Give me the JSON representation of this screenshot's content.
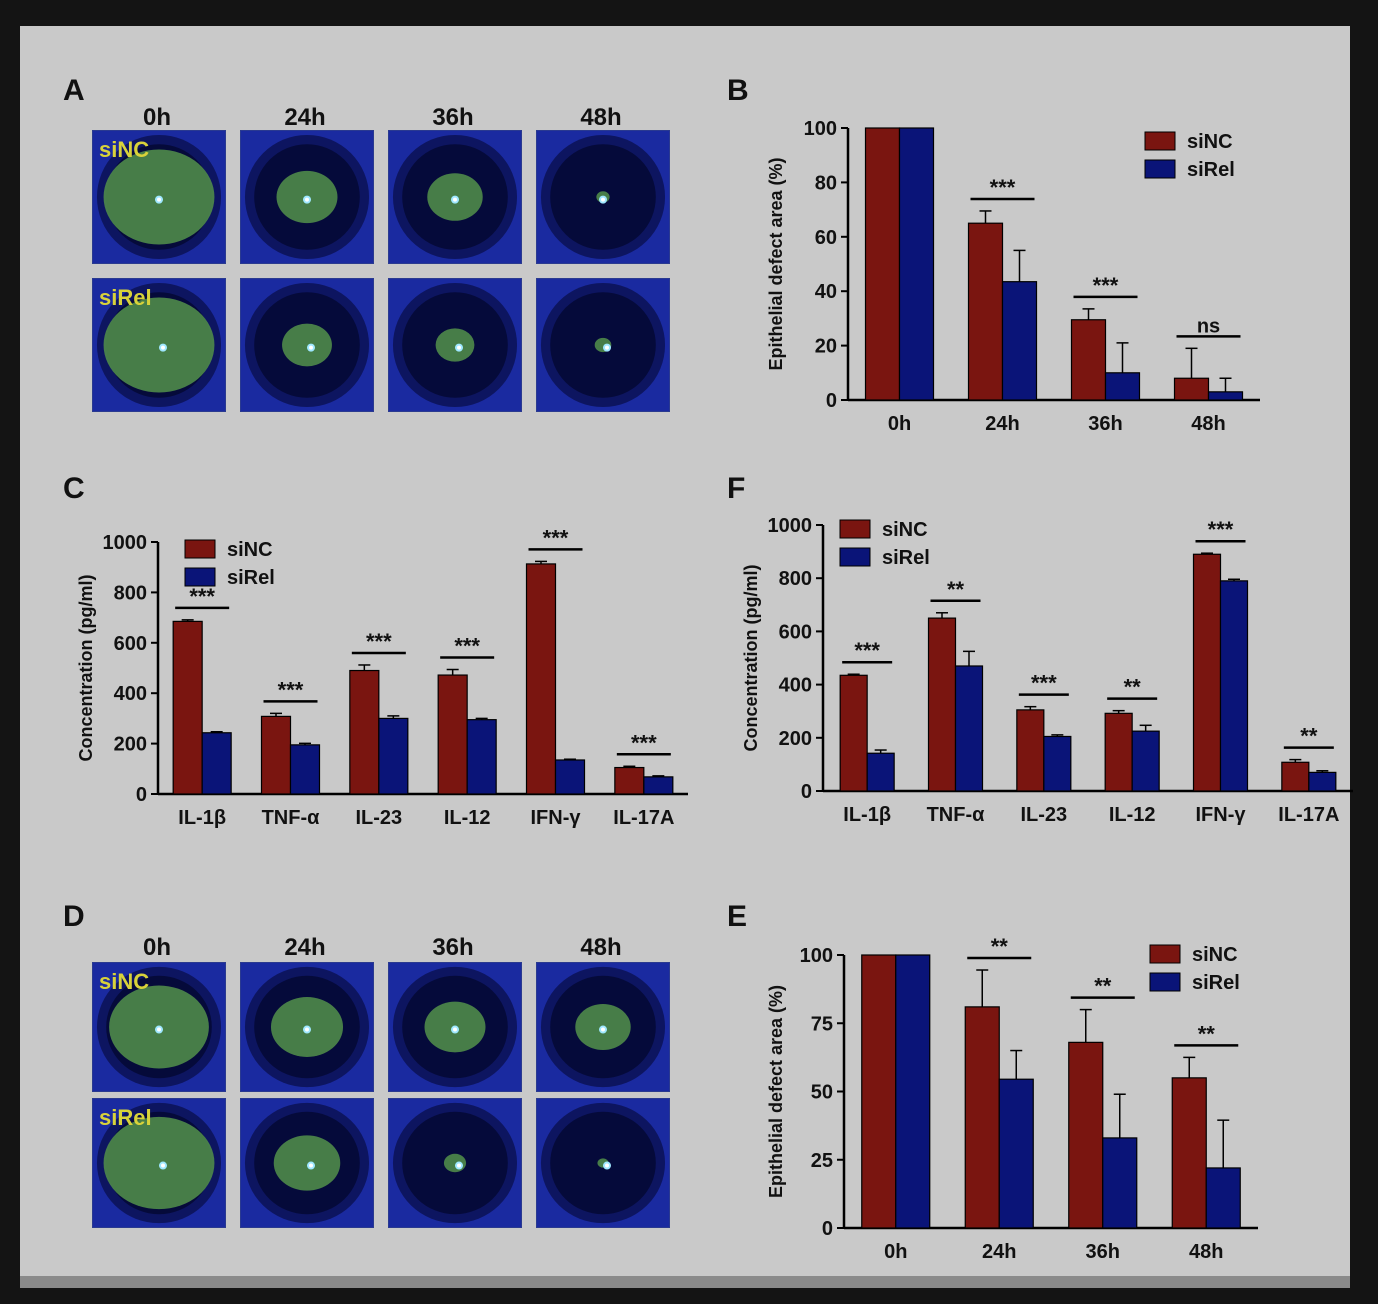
{
  "panels": {
    "A": {
      "letter": "A",
      "times": [
        "0h",
        "24h",
        "36h",
        "48h"
      ],
      "rows": [
        {
          "tag": "siNC",
          "stain": [
            1.0,
            0.55,
            0.5,
            0.12
          ]
        },
        {
          "tag": "siRel",
          "stain": [
            1.0,
            0.45,
            0.35,
            0.15
          ]
        }
      ]
    },
    "D": {
      "letter": "D",
      "times": [
        "0h",
        "24h",
        "36h",
        "48h"
      ],
      "rows": [
        {
          "tag": "siNC",
          "stain": [
            0.9,
            0.65,
            0.55,
            0.5
          ]
        },
        {
          "tag": "siRel",
          "stain": [
            1.0,
            0.6,
            0.2,
            0.1
          ]
        }
      ]
    },
    "B": {
      "letter": "B"
    },
    "C": {
      "letter": "C"
    },
    "F": {
      "letter": "F"
    },
    "E": {
      "letter": "E"
    }
  },
  "colors": {
    "siNC": "#7a1510",
    "siRel": "#0a1478"
  },
  "chart_data": [
    {
      "panel": "B",
      "type": "bar",
      "ylabel": "Epithelial defect area (%)",
      "categories": [
        "0h",
        "24h",
        "36h",
        "48h"
      ],
      "ylim": [
        0,
        100
      ],
      "yticks": [
        "0",
        "20",
        "40",
        "60",
        "80",
        "100"
      ],
      "legend_position": "top-right",
      "series": [
        {
          "name": "siNC",
          "values": [
            100,
            65,
            29.5,
            8
          ],
          "errors": [
            0,
            4.5,
            4,
            11
          ]
        },
        {
          "name": "siRel",
          "values": [
            100,
            43.5,
            10,
            3
          ],
          "errors": [
            0,
            11.5,
            11,
            5
          ]
        }
      ],
      "annotations": [
        "",
        "***",
        "***",
        "ns"
      ]
    },
    {
      "panel": "C",
      "type": "bar",
      "ylabel": "Concentration (pg/ml)",
      "categories": [
        "IL-1β",
        "TNF-α",
        "IL-23",
        "IL-12",
        "IFN-γ",
        "IL-17A"
      ],
      "ylim": [
        0,
        1000
      ],
      "yticks": [
        "0",
        "200",
        "400",
        "600",
        "800",
        "1000"
      ],
      "legend_position": "top-left",
      "series": [
        {
          "name": "siNC",
          "values": [
            685,
            308,
            490,
            472,
            913,
            105
          ],
          "errors": [
            6,
            12,
            22,
            22,
            10,
            5
          ]
        },
        {
          "name": "siRel",
          "values": [
            243,
            195,
            300,
            295,
            135,
            68
          ],
          "errors": [
            4,
            6,
            10,
            5,
            3,
            4
          ]
        }
      ],
      "annotations": [
        "***",
        "***",
        "***",
        "***",
        "***",
        "***"
      ]
    },
    {
      "panel": "F",
      "type": "bar",
      "ylabel": "Concentration (pg/ml)",
      "categories": [
        "IL-1β",
        "TNF-α",
        "IL-23",
        "IL-12",
        "IFN-γ",
        "IL-17A"
      ],
      "ylim": [
        0,
        1000
      ],
      "yticks": [
        "0",
        "200",
        "400",
        "600",
        "800",
        "1000"
      ],
      "legend_position": "top-left",
      "series": [
        {
          "name": "siNC",
          "values": [
            435,
            650,
            305,
            292,
            890,
            108
          ],
          "errors": [
            4,
            20,
            12,
            10,
            4,
            10
          ]
        },
        {
          "name": "siRel",
          "values": [
            142,
            470,
            205,
            225,
            790,
            70
          ],
          "errors": [
            12,
            55,
            6,
            22,
            6,
            6
          ]
        }
      ],
      "annotations": [
        "***",
        "**",
        "***",
        "**",
        "***",
        "**"
      ]
    },
    {
      "panel": "E",
      "type": "bar",
      "ylabel": "Epithelial defect area (%)",
      "categories": [
        "0h",
        "24h",
        "36h",
        "48h"
      ],
      "ylim": [
        0,
        100
      ],
      "yticks": [
        "0",
        "25",
        "50",
        "75",
        "100"
      ],
      "legend_position": "top-right",
      "series": [
        {
          "name": "siNC",
          "values": [
            100,
            81,
            68,
            55
          ],
          "errors": [
            0,
            13.5,
            12,
            7.5
          ]
        },
        {
          "name": "siRel",
          "values": [
            100,
            54.5,
            33,
            22
          ],
          "errors": [
            0,
            10.5,
            16,
            17.5
          ]
        }
      ],
      "annotations": [
        "",
        "**",
        "**",
        "**"
      ]
    }
  ]
}
